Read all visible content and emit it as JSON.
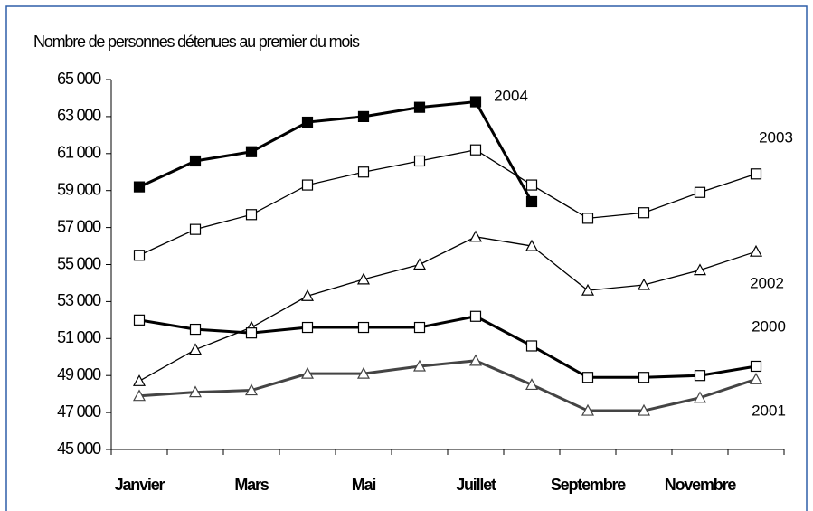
{
  "chart_data": {
    "type": "line",
    "title": "Nombre de personnes détenues au premier du mois",
    "categories": [
      "Janvier",
      null,
      "Mars",
      null,
      "Mai",
      null,
      "Juillet",
      null,
      "Septembre",
      null,
      "Novembre",
      null
    ],
    "ylim": [
      45000,
      65000
    ],
    "yticks": [
      {
        "value": 45000,
        "label": "45 000"
      },
      {
        "value": 47000,
        "label": "47 000"
      },
      {
        "value": 49000,
        "label": "49 000"
      },
      {
        "value": 51000,
        "label": "51 000"
      },
      {
        "value": 53000,
        "label": "53 000"
      },
      {
        "value": 55000,
        "label": "55 000"
      },
      {
        "value": 57000,
        "label": "57 000"
      },
      {
        "value": 59000,
        "label": "59 000"
      },
      {
        "value": 61000,
        "label": "61 000"
      },
      {
        "value": 63000,
        "label": "63 000"
      },
      {
        "value": 65000,
        "label": "65 000"
      }
    ],
    "grid": false,
    "series": [
      {
        "name": "2004",
        "color": "#000000",
        "marker": "filled-square",
        "values": [
          59200,
          60600,
          61100,
          62700,
          63000,
          63500,
          63800,
          58400,
          null,
          null,
          null,
          null
        ]
      },
      {
        "name": "2003",
        "color": "#000000",
        "marker": "square",
        "values": [
          55500,
          56900,
          57700,
          59300,
          60000,
          60600,
          61200,
          59300,
          57500,
          57800,
          58900,
          59900
        ]
      },
      {
        "name": "2002",
        "color": "#000000",
        "marker": "triangle",
        "values": [
          48700,
          50400,
          51600,
          53300,
          54200,
          55000,
          56500,
          56000,
          53600,
          53900,
          54700,
          55700
        ]
      },
      {
        "name": "2000",
        "color": "#000000",
        "marker": "square",
        "values": [
          52000,
          51500,
          51300,
          51600,
          51600,
          51600,
          52200,
          50600,
          48900,
          48900,
          49000,
          49500
        ]
      },
      {
        "name": "2001",
        "color": "#444444",
        "marker": "triangle",
        "values": [
          47900,
          48100,
          48200,
          49100,
          49100,
          49500,
          49800,
          48500,
          47100,
          47100,
          47800,
          48800
        ]
      }
    ]
  }
}
